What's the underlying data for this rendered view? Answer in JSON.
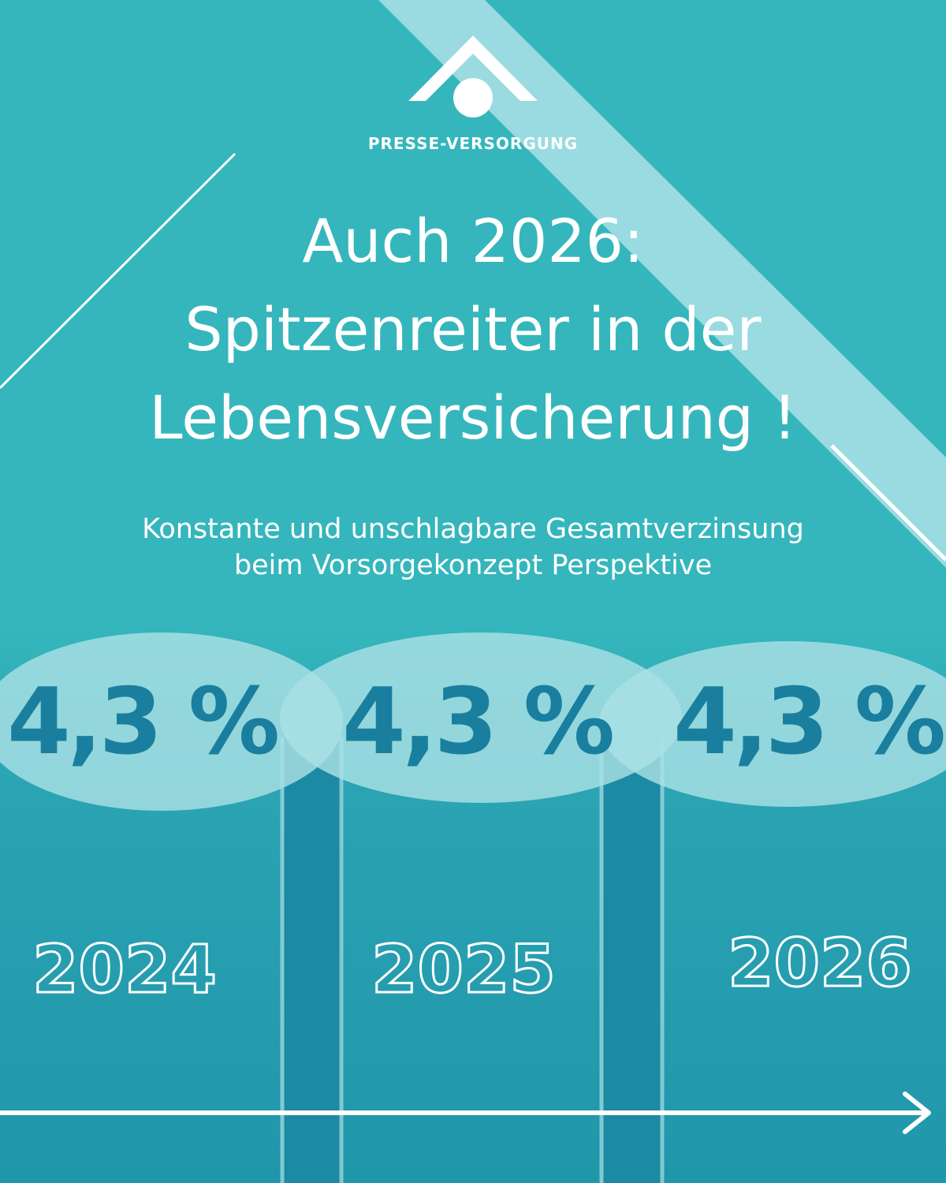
{
  "brand": {
    "name": "PRESSE-VERSORGUNG",
    "logo_icon": "house-roof-with-circle-icon"
  },
  "headline": {
    "line1": "Auch 2026:",
    "line2": "Spitzenreiter in der",
    "line3": "Lebensversicherung !"
  },
  "subheadline": {
    "line1": "Konstante und unschlagbare Gesamtverzinsung",
    "line2": "beim Vorsorgekonzept Perspektive"
  },
  "timeline": [
    {
      "rate": "4,3 %",
      "year": "2024"
    },
    {
      "rate": "4,3 %",
      "year": "2025"
    },
    {
      "rate": "4,3 %",
      "year": "2026"
    }
  ],
  "timeline_arrow_icon": "arrow-right-icon",
  "colors": {
    "background": "#35b6bc",
    "background_bottom": "#2096aa",
    "accent_light": "#a2dde2",
    "rate_text": "#1a7f9e",
    "text": "#ffffff"
  }
}
